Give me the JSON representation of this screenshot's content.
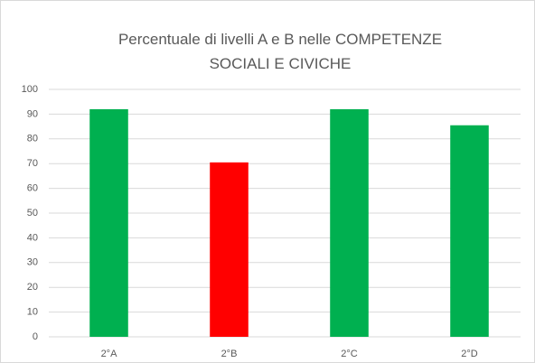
{
  "chart_data": {
    "type": "bar",
    "title": "Percentuale di livelli A e B nelle COMPETENZE SOCIALI E CIVICHE",
    "categories": [
      "2°A",
      "2°B",
      "2°C",
      "2°D"
    ],
    "values": [
      92,
      70.5,
      92,
      85.5
    ],
    "colors": [
      "#00b050",
      "#ff0000",
      "#00b050",
      "#00b050"
    ],
    "ylim": [
      0,
      100
    ],
    "yticks": [
      0,
      10,
      20,
      30,
      40,
      50,
      60,
      70,
      80,
      90,
      100
    ],
    "grid": true
  }
}
